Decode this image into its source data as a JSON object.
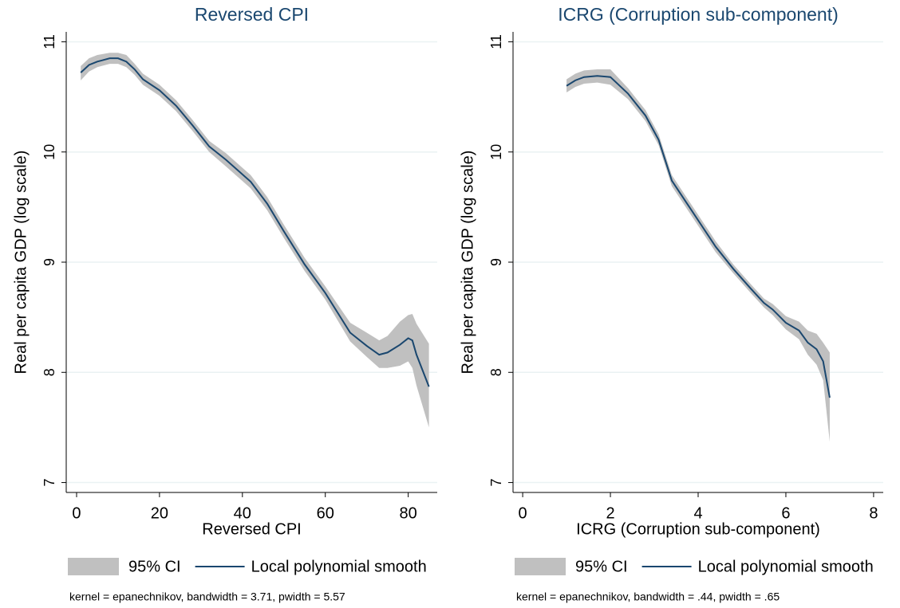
{
  "chart_data": [
    {
      "type": "line",
      "title": "Reversed CPI",
      "x_label": "Reversed CPI",
      "y_label": "Real per capita GDP (log scale)",
      "note": "kernel = epanechnikov, bandwidth = 3.71, pwidth = 5.57",
      "x": [
        1,
        3,
        5,
        8,
        10,
        12,
        14,
        16,
        20,
        24,
        28,
        32,
        36,
        42,
        46,
        50,
        55,
        60,
        66,
        70,
        73,
        75,
        78,
        80,
        81,
        82,
        85
      ],
      "series": [
        {
          "name": "95% CI",
          "color": "#c0c0c0",
          "upper": [
            10.78,
            10.85,
            10.88,
            10.9,
            10.9,
            10.88,
            10.8,
            10.71,
            10.61,
            10.47,
            10.29,
            10.1,
            9.99,
            9.79,
            9.59,
            9.34,
            9.04,
            8.78,
            8.45,
            8.36,
            8.29,
            8.33,
            8.46,
            8.52,
            8.53,
            8.44,
            8.26
          ],
          "lower": [
            10.65,
            10.73,
            10.77,
            10.8,
            10.8,
            10.77,
            10.7,
            10.61,
            10.51,
            10.37,
            10.19,
            10.0,
            9.87,
            9.67,
            9.47,
            9.22,
            8.92,
            8.66,
            8.28,
            8.14,
            8.04,
            8.04,
            8.06,
            8.1,
            8.04,
            7.88,
            7.5
          ]
        },
        {
          "name": "Local polynomial smooth",
          "color": "#1a476f",
          "values": [
            10.72,
            10.79,
            10.82,
            10.85,
            10.85,
            10.82,
            10.75,
            10.66,
            10.56,
            10.42,
            10.24,
            10.05,
            9.93,
            9.73,
            9.53,
            9.28,
            8.98,
            8.72,
            8.36,
            8.24,
            8.16,
            8.18,
            8.25,
            8.31,
            8.29,
            8.16,
            7.87
          ]
        }
      ],
      "xlim": [
        -2.5,
        87
      ],
      "xticks": [
        0,
        20,
        40,
        60,
        80
      ],
      "ylim": [
        6.91,
        11.09
      ],
      "yticks": [
        7,
        8,
        9,
        10,
        11
      ],
      "grid": true,
      "legend": "bottom"
    },
    {
      "type": "line",
      "title": "ICRG (Corruption sub-component)",
      "x_label": "ICRG (Corruption sub-component)",
      "y_label": "Real per capita GDP (log scale)",
      "note": "kernel = epanechnikov, bandwidth = .44, pwidth = .65",
      "x": [
        1,
        1.2,
        1.4,
        1.7,
        2,
        2.4,
        2.8,
        3.1,
        3.4,
        3.8,
        4.1,
        4.4,
        4.8,
        5.2,
        5.5,
        5.7,
        6,
        6.3,
        6.5,
        6.7,
        6.85,
        7
      ],
      "series": [
        {
          "name": "95% CI",
          "color": "#c0c0c0",
          "upper": [
            10.66,
            10.71,
            10.74,
            10.75,
            10.75,
            10.58,
            10.38,
            10.16,
            9.79,
            9.55,
            9.37,
            9.19,
            8.98,
            8.8,
            8.67,
            8.62,
            8.51,
            8.46,
            8.38,
            8.35,
            8.27,
            8.18
          ],
          "lower": [
            10.54,
            10.59,
            10.62,
            10.63,
            10.61,
            10.48,
            10.28,
            10.06,
            9.69,
            9.45,
            9.27,
            9.09,
            8.9,
            8.72,
            8.59,
            8.52,
            8.39,
            8.3,
            8.16,
            8.07,
            7.93,
            7.37
          ]
        },
        {
          "name": "Local polynomial smooth",
          "color": "#1a476f",
          "values": [
            10.6,
            10.65,
            10.68,
            10.69,
            10.68,
            10.53,
            10.33,
            10.11,
            9.74,
            9.5,
            9.32,
            9.14,
            8.94,
            8.76,
            8.63,
            8.57,
            8.45,
            8.38,
            8.27,
            8.21,
            8.1,
            7.77
          ]
        }
      ],
      "xlim": [
        -0.22,
        8.22
      ],
      "xticks": [
        0,
        2,
        4,
        6,
        8
      ],
      "ylim": [
        6.91,
        11.09
      ],
      "yticks": [
        7,
        8,
        9,
        10,
        11
      ],
      "grid": true,
      "legend": "bottom"
    }
  ]
}
